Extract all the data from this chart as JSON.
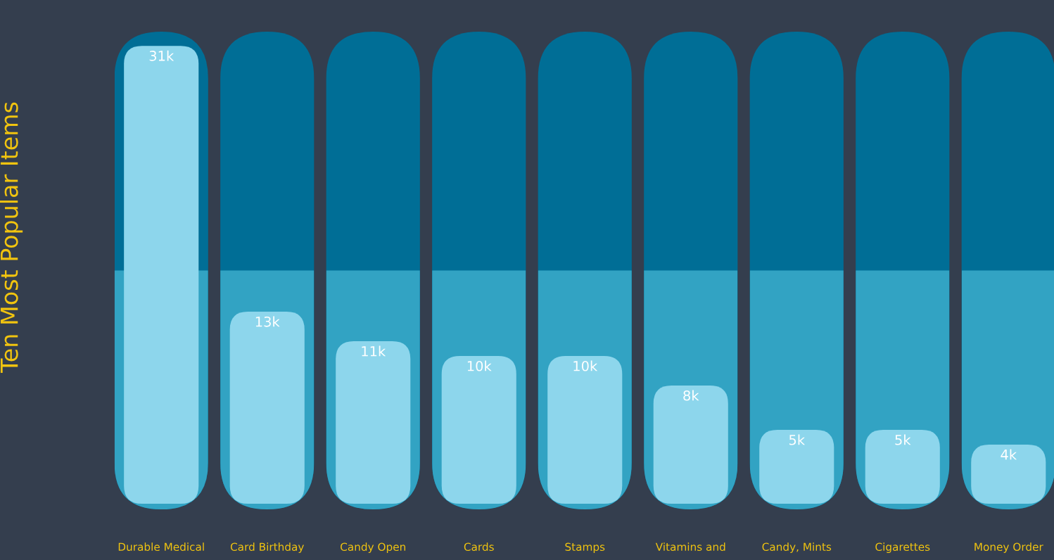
{
  "chart_data": {
    "type": "bar",
    "ylabel": "Ten Most Popular Items",
    "categories": [
      "Durable Medical",
      "Card Birthday",
      "Candy Open",
      "Cards",
      "Stamps",
      "Vitamins and",
      "Candy, Mints",
      "Cigarettes",
      "Money Order"
    ],
    "values": [
      31000,
      13000,
      11000,
      10000,
      10000,
      8000,
      5000,
      5000,
      4000
    ],
    "value_labels": [
      "31k",
      "13k",
      "11k",
      "10k",
      "10k",
      "8k",
      "5k",
      "5k",
      "4k"
    ],
    "color": "#8dd6ec",
    "grid": false
  }
}
